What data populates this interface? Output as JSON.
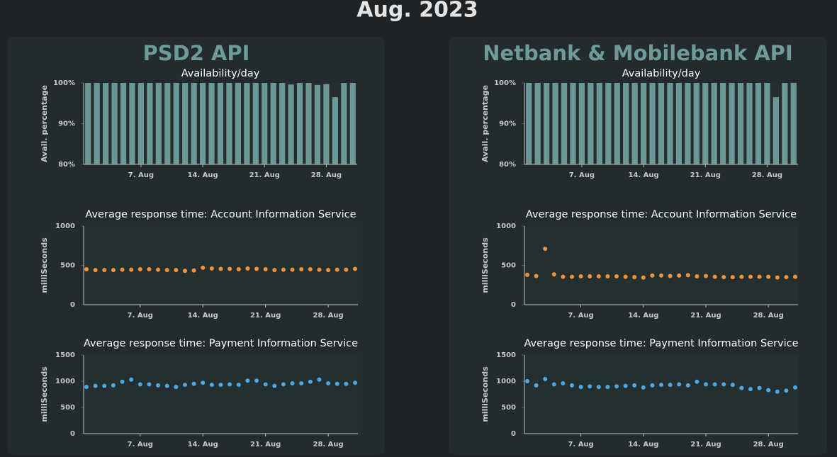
{
  "title": "Aug. 2023",
  "panels": [
    {
      "title": "PSD2 API"
    },
    {
      "title": "Netbank & Mobilebank API"
    }
  ],
  "chart_data": [
    {
      "type": "bar",
      "title": "Availability/day",
      "y_label": "Avail. percentage",
      "color": "#6a9896",
      "categories": [
        null,
        null,
        null,
        null,
        null,
        null,
        "7. Aug",
        null,
        null,
        null,
        null,
        null,
        null,
        "14. Aug",
        null,
        null,
        null,
        null,
        null,
        null,
        "21. Aug",
        null,
        null,
        null,
        null,
        null,
        null,
        "28. Aug",
        null,
        null,
        null
      ],
      "values": [
        100,
        100,
        100,
        100,
        100,
        100,
        100,
        100,
        100,
        100,
        100,
        100,
        100,
        100,
        100,
        100,
        100,
        100,
        100,
        100,
        100,
        100,
        100,
        99.6,
        100,
        100,
        99.5,
        99.7,
        96.5,
        100,
        100
      ],
      "ylim": [
        80,
        100
      ],
      "yticks": [
        {
          "value": 80,
          "label": "80%"
        },
        {
          "value": 90,
          "label": "90%"
        },
        {
          "value": 100,
          "label": "100%"
        }
      ]
    },
    {
      "type": "scatter",
      "title": "Average response time: Account Information Service",
      "y_label": "milliSeconds",
      "color": "#f7923a",
      "categories": [
        null,
        null,
        null,
        null,
        null,
        null,
        "7. Aug",
        null,
        null,
        null,
        null,
        null,
        null,
        "14. Aug",
        null,
        null,
        null,
        null,
        null,
        null,
        "21. Aug",
        null,
        null,
        null,
        null,
        null,
        null,
        "28. Aug",
        null,
        null,
        null
      ],
      "values": [
        450,
        440,
        440,
        440,
        445,
        445,
        450,
        450,
        445,
        440,
        440,
        430,
        435,
        470,
        460,
        455,
        455,
        450,
        460,
        455,
        450,
        440,
        445,
        445,
        450,
        450,
        445,
        440,
        445,
        445,
        455
      ],
      "ylim": [
        0,
        1000
      ],
      "yticks": [
        0,
        500,
        1000
      ]
    },
    {
      "type": "scatter",
      "title": "Average response time: Payment Information Service",
      "y_label": "milliSeconds",
      "color": "#4ca9e6",
      "categories": [
        null,
        null,
        null,
        null,
        null,
        null,
        "7. Aug",
        null,
        null,
        null,
        null,
        null,
        null,
        "14. Aug",
        null,
        null,
        null,
        null,
        null,
        null,
        "21. Aug",
        null,
        null,
        null,
        null,
        null,
        null,
        "28. Aug",
        null,
        null,
        null
      ],
      "values": [
        890,
        910,
        910,
        920,
        990,
        1030,
        940,
        940,
        920,
        910,
        890,
        930,
        950,
        970,
        930,
        930,
        940,
        930,
        1010,
        1010,
        940,
        910,
        940,
        960,
        960,
        990,
        1030,
        960,
        950,
        950,
        970
      ],
      "ylim": [
        0,
        1500
      ],
      "yticks": [
        0,
        500,
        1000,
        1500
      ]
    },
    {
      "type": "bar",
      "title": "Availability/day",
      "y_label": "Avail. percentage",
      "color": "#6a9896",
      "categories": [
        null,
        null,
        null,
        null,
        null,
        null,
        "7. Aug",
        null,
        null,
        null,
        null,
        null,
        null,
        "14. Aug",
        null,
        null,
        null,
        null,
        null,
        null,
        "21. Aug",
        null,
        null,
        null,
        null,
        null,
        null,
        "28. Aug",
        null,
        null,
        null
      ],
      "values": [
        100,
        100,
        100,
        100,
        100,
        100,
        100,
        100,
        100,
        100,
        100,
        100,
        100,
        100,
        100,
        100,
        100,
        100,
        100,
        100,
        100,
        100,
        100,
        100,
        100,
        100,
        100,
        100,
        96.5,
        100,
        100
      ],
      "ylim": [
        80,
        100
      ],
      "yticks": [
        {
          "value": 80,
          "label": "80%"
        },
        {
          "value": 90,
          "label": "90%"
        },
        {
          "value": 100,
          "label": "100%"
        }
      ]
    },
    {
      "type": "scatter",
      "title": "Average response time: Account Information Service",
      "y_label": "milliSeconds",
      "color": "#f7923a",
      "categories": [
        null,
        null,
        null,
        null,
        null,
        null,
        "7. Aug",
        null,
        null,
        null,
        null,
        null,
        null,
        "14. Aug",
        null,
        null,
        null,
        null,
        null,
        null,
        "21. Aug",
        null,
        null,
        null,
        null,
        null,
        null,
        "28. Aug",
        null,
        null,
        null
      ],
      "values": [
        380,
        365,
        710,
        385,
        355,
        355,
        360,
        360,
        360,
        360,
        360,
        355,
        350,
        345,
        370,
        370,
        365,
        370,
        375,
        360,
        365,
        355,
        350,
        350,
        355,
        355,
        355,
        355,
        345,
        350,
        355
      ],
      "ylim": [
        0,
        1000
      ],
      "yticks": [
        0,
        500,
        1000
      ]
    },
    {
      "type": "scatter",
      "title": "Average response time: Payment Information Service",
      "y_label": "milliSeconds",
      "color": "#4ca9e6",
      "categories": [
        null,
        null,
        null,
        null,
        null,
        null,
        "7. Aug",
        null,
        null,
        null,
        null,
        null,
        null,
        "14. Aug",
        null,
        null,
        null,
        null,
        null,
        null,
        "21. Aug",
        null,
        null,
        null,
        null,
        null,
        null,
        "28. Aug",
        null,
        null,
        null
      ],
      "values": [
        1000,
        920,
        1040,
        940,
        960,
        920,
        890,
        900,
        890,
        890,
        900,
        910,
        920,
        880,
        920,
        930,
        930,
        940,
        920,
        990,
        940,
        940,
        940,
        930,
        870,
        850,
        870,
        830,
        800,
        820,
        880
      ],
      "ylim": [
        0,
        1500
      ],
      "yticks": [
        0,
        500,
        1000,
        1500
      ]
    }
  ]
}
